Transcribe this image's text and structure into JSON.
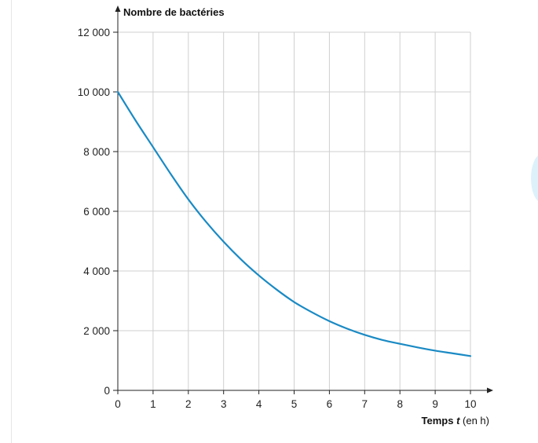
{
  "chart_data": {
    "type": "line",
    "title": "",
    "ylabel": "Nombre de bactéries",
    "xlabel": {
      "main": "Temps",
      "variable": "t",
      "unit": "(en h)"
    },
    "x_ticks": [
      "0",
      "1",
      "2",
      "3",
      "4",
      "5",
      "6",
      "7",
      "8",
      "9",
      "10"
    ],
    "y_ticks": [
      "0",
      "2 000",
      "4 000",
      "6 000",
      "8 000",
      "10 000",
      "12 000"
    ],
    "xlim": [
      0,
      10
    ],
    "ylim": [
      0,
      12000
    ],
    "grid": true,
    "series": [
      {
        "x": [
          0,
          0.5,
          1,
          1.5,
          2,
          2.5,
          3,
          3.5,
          4,
          4.5,
          5,
          5.5,
          6,
          6.5,
          7,
          7.5,
          8,
          8.5,
          9,
          9.5,
          10
        ],
        "y": [
          10000,
          9050,
          8150,
          7250,
          6400,
          5650,
          4980,
          4380,
          3850,
          3380,
          2960,
          2620,
          2320,
          2070,
          1860,
          1690,
          1560,
          1440,
          1330,
          1240,
          1150
        ]
      }
    ],
    "colors": {
      "line": "#1a8ac4",
      "grid": "#cfcfcf",
      "axis": "#222222"
    }
  }
}
